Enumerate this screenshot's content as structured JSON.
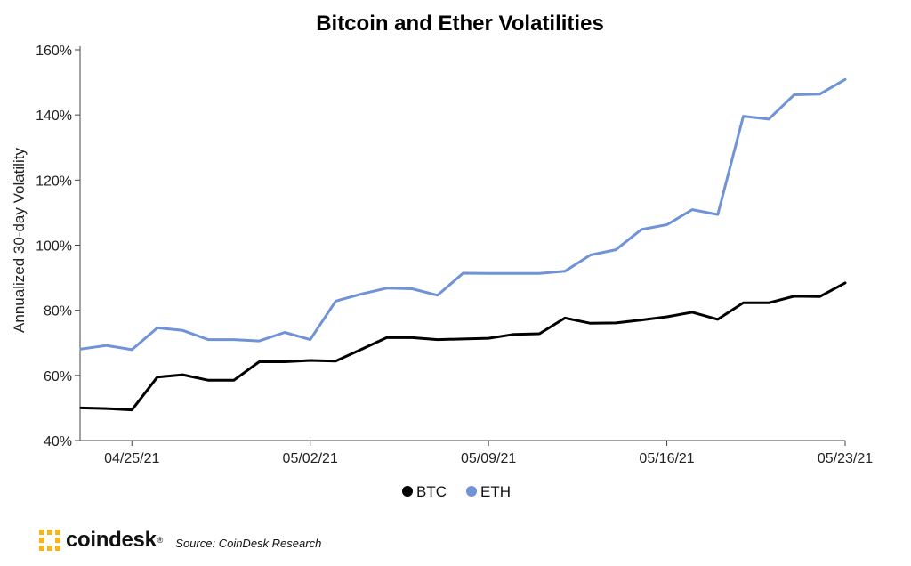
{
  "chart_data": {
    "type": "line",
    "title": "Bitcoin and Ether Volatilities",
    "ylabel": "Annualized 30-day Volatility",
    "xlabel": "",
    "ylim": [
      40,
      160
    ],
    "y_ticks": [
      "40%",
      "60%",
      "80%",
      "100%",
      "120%",
      "140%",
      "160%"
    ],
    "x_ticks": [
      {
        "label": "04/25/21",
        "x": "04/25/21"
      },
      {
        "label": "05/02/21",
        "x": "05/02/21"
      },
      {
        "label": "05/09/21",
        "x": "05/09/21"
      },
      {
        "label": "05/16/21",
        "x": "05/16/21"
      },
      {
        "label": "05/23/21",
        "x": "05/23/21"
      }
    ],
    "x": [
      "04/23/21",
      "04/24/21",
      "04/25/21",
      "04/26/21",
      "04/27/21",
      "04/28/21",
      "04/29/21",
      "04/30/21",
      "05/01/21",
      "05/02/21",
      "05/03/21",
      "05/04/21",
      "05/05/21",
      "05/06/21",
      "05/07/21",
      "05/08/21",
      "05/09/21",
      "05/10/21",
      "05/11/21",
      "05/12/21",
      "05/13/21",
      "05/14/21",
      "05/15/21",
      "05/16/21",
      "05/17/21",
      "05/18/21",
      "05/19/21",
      "05/20/21",
      "05/21/21",
      "05/22/21",
      "05/23/21"
    ],
    "series": [
      {
        "name": "BTC",
        "color": "#000000",
        "values": [
          50,
          49.8,
          49.4,
          59.5,
          60.2,
          58.5,
          58.5,
          64.2,
          64.2,
          64.6,
          64.4,
          68,
          71.6,
          71.6,
          71,
          71.2,
          71.4,
          72.6,
          72.8,
          77.6,
          76,
          76.1,
          77,
          78,
          79.4,
          77.2,
          82.3,
          82.3,
          84.3,
          84.2,
          88.4
        ]
      },
      {
        "name": "ETH",
        "color": "#6f93d6",
        "values": [
          68.1,
          69.2,
          67.9,
          74.6,
          73.8,
          71,
          71,
          70.6,
          73.2,
          71,
          82.8,
          85,
          86.8,
          86.6,
          84.6,
          91.4,
          91.3,
          91.3,
          91.3,
          92,
          97,
          98.6,
          104.8,
          106.3,
          110.9,
          109.4,
          139.6,
          138.7,
          146.2,
          146.4,
          150.9
        ]
      }
    ],
    "legend": {
      "placement": "bottom-center",
      "entries": [
        "BTC",
        "ETH"
      ]
    },
    "grid": false
  },
  "footer": {
    "brand": "coindesk",
    "brand_mark": "®",
    "brand_color": "#f5b522",
    "source": "Source: CoinDesk Research"
  }
}
